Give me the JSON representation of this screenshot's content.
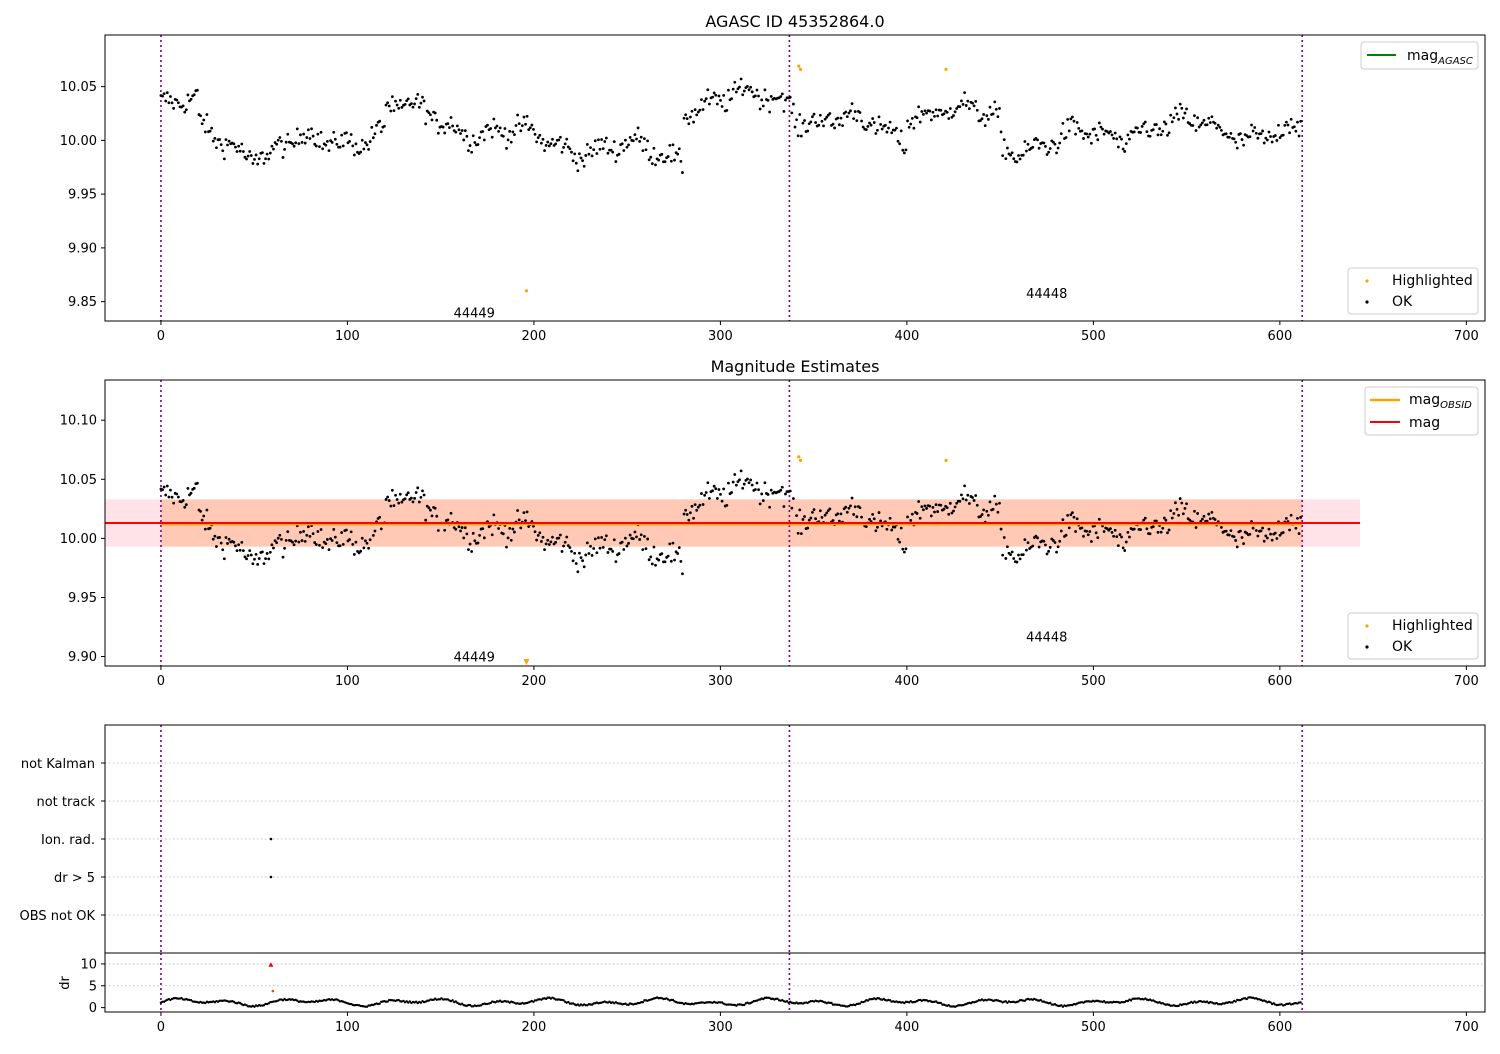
{
  "chart_data": [
    {
      "type": "scatter",
      "title": "AGASC ID 45352864.0",
      "xlabel": "",
      "ylabel": "",
      "xlim": [
        -30,
        710
      ],
      "ylim": [
        9.832,
        10.098
      ],
      "x_ticks": [
        0,
        100,
        200,
        300,
        400,
        500,
        600,
        700
      ],
      "y_ticks": [
        9.85,
        9.9,
        9.95,
        10.0,
        10.05
      ],
      "y_tick_labels": [
        "9.85",
        "9.90",
        "9.95",
        "10.00",
        "10.05"
      ],
      "obsid_boundaries": [
        0,
        337,
        612
      ],
      "obsid_annotations": [
        {
          "text": "44449",
          "x": 168,
          "y": 9.84
        },
        {
          "text": "44448",
          "x": 475,
          "y": 9.858
        }
      ],
      "series": [
        {
          "name": "mag_AGASC",
          "color": "#008000",
          "marker": "line",
          "y": null
        },
        {
          "name": "Highlighted",
          "color": "#FFA500",
          "marker": "point",
          "points": [
            [
              196,
              9.86
            ],
            [
              342,
              10.069
            ],
            [
              343,
              10.066
            ],
            [
              421,
              10.066
            ]
          ]
        },
        {
          "name": "OK",
          "color": "#000000",
          "marker": "point",
          "values": "see ok_profile"
        }
      ],
      "legend": [
        "top-right: mag_AGASC",
        "bottom-right: Highlighted, OK"
      ],
      "grid": false
    },
    {
      "type": "scatter",
      "title": "Magnitude Estimates",
      "xlabel": "",
      "ylabel": "",
      "xlim": [
        -30,
        710
      ],
      "ylim": [
        9.892,
        10.134
      ],
      "x_ticks": [
        0,
        100,
        200,
        300,
        400,
        500,
        600,
        700
      ],
      "y_ticks": [
        9.9,
        9.95,
        10.0,
        10.05,
        10.1
      ],
      "y_tick_labels": [
        "9.90",
        "9.95",
        "10.00",
        "10.05",
        "10.10"
      ],
      "obsid_boundaries": [
        0,
        337,
        612
      ],
      "obsid_annotations": [
        {
          "text": "44449",
          "x": 168,
          "y": 9.9
        },
        {
          "text": "44448",
          "x": 475,
          "y": 9.917
        }
      ],
      "series": [
        {
          "name": "mag_OBSID",
          "color": "#FFA500",
          "marker": "line",
          "y": 10.012,
          "x_range": [
            0,
            612
          ],
          "band": [
            9.993,
            10.033
          ],
          "band_color": "#FFB48C"
        },
        {
          "name": "mag",
          "color": "#FF0000",
          "marker": "line",
          "y": 10.013,
          "x_range": [
            -30,
            643
          ],
          "band": [
            9.993,
            10.033
          ],
          "band_color": "#FFC0CB"
        },
        {
          "name": "Highlighted",
          "color": "#FFA500",
          "marker": "point",
          "points": [
            [
              342,
              10.069
            ],
            [
              343,
              10.066
            ],
            [
              421,
              10.066
            ]
          ],
          "out_of_range": [
            [
              196,
              9.893
            ]
          ]
        },
        {
          "name": "OK",
          "color": "#000000",
          "marker": "point",
          "values": "see ok_profile"
        }
      ],
      "legend": [
        "top-right: mag_OBSID, mag",
        "bottom-right: Highlighted, OK"
      ],
      "grid": false
    },
    {
      "type": "scatter",
      "title": "",
      "xlim": [
        -30,
        710
      ],
      "categories": [
        "not Kalman",
        "not track",
        "Ion. rad.",
        "dr > 5",
        "OBS not OK"
      ],
      "obsid_boundaries": [
        0,
        337,
        612
      ],
      "flag_points": [
        {
          "category": "Ion. rad.",
          "x": 59
        },
        {
          "category": "dr > 5",
          "x": 59
        }
      ],
      "grid": true
    },
    {
      "type": "scatter",
      "title": "",
      "ylabel": "dr",
      "xlim": [
        -30,
        710
      ],
      "ylim": [
        -1,
        12.5
      ],
      "y_ticks": [
        0,
        5,
        10
      ],
      "x_ticks": [
        0,
        100,
        200,
        300,
        400,
        500,
        600,
        700
      ],
      "obsid_boundaries": [
        0,
        337,
        612
      ],
      "threshold_line": 5,
      "highlight_points": [
        [
          59,
          9.8
        ],
        [
          60,
          3.8
        ]
      ],
      "series": [
        {
          "name": "dr",
          "color": "#000000",
          "values": "see dr_profile"
        }
      ]
    }
  ],
  "ok_profile": {
    "x_range": [
      0,
      612
    ],
    "segments": [
      {
        "x": [
          0,
          20
        ],
        "y": [
          10.032,
          10.03
        ]
      },
      {
        "x": [
          20,
          60
        ],
        "y": [
          10.01,
          9.985
        ]
      },
      {
        "x": [
          60,
          120
        ],
        "y": [
          9.99,
          10.01
        ]
      },
      {
        "x": [
          120,
          200
        ],
        "y": [
          10.03,
          10.0
        ]
      },
      {
        "x": [
          200,
          280
        ],
        "y": [
          10.0,
          9.985
        ]
      },
      {
        "x": [
          280,
          340
        ],
        "y": [
          10.035,
          10.04
        ]
      },
      {
        "x": [
          340,
          400
        ],
        "y": [
          10.025,
          10.005
        ]
      },
      {
        "x": [
          400,
          450
        ],
        "y": [
          10.03,
          10.02
        ]
      },
      {
        "x": [
          450,
          520
        ],
        "y": [
          9.995,
          10.005
        ]
      },
      {
        "x": [
          520,
          612
        ],
        "y": [
          10.015,
          10.005
        ]
      }
    ],
    "scatter": 0.022
  },
  "dr_profile": {
    "x_range": [
      0,
      612
    ],
    "typical": [
      0.2,
      2.5
    ]
  }
}
